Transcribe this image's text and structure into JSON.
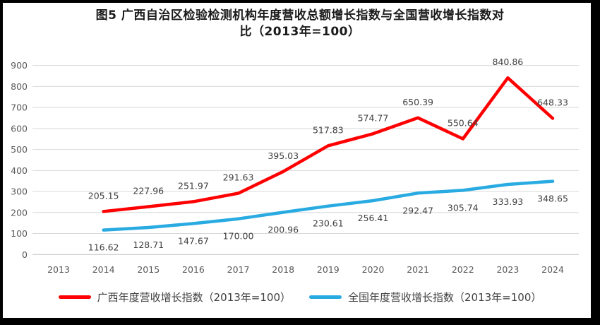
{
  "chart_data": {
    "type": "line",
    "title": "图5 广西自治区检验检测机构年度营收总额增长指数与全国营收增长指数对比（2013年=100）",
    "title_lines": {
      "line1": "图5  广西自治区检验检测机构年度营收总额增长指数与全国营收增长指数对",
      "line2": "比（2013年=100）"
    },
    "categories": [
      "2013",
      "2014",
      "2015",
      "2016",
      "2017",
      "2018",
      "2019",
      "2020",
      "2021",
      "2022",
      "2023",
      "2024"
    ],
    "ylim": [
      0,
      900
    ],
    "ytick_step": 100,
    "ytick_labels": [
      "0",
      "100",
      "200",
      "300",
      "400",
      "500",
      "600",
      "700",
      "800",
      "900"
    ],
    "grid": true,
    "legend_position": "bottom",
    "series": [
      {
        "name": "广西年度营收增长指数（2013年=100）",
        "color": "#FF0000",
        "start_category_index": 1,
        "values": [
          205.15,
          227.96,
          251.97,
          291.63,
          395.03,
          517.83,
          574.77,
          650.39,
          550.64,
          840.86,
          648.33
        ],
        "labels": [
          "205.15",
          "227.96",
          "251.97",
          "291.63",
          "395.03",
          "517.83",
          "574.77",
          "650.39",
          "550.64",
          "840.86",
          "648.33"
        ],
        "label_position": "above"
      },
      {
        "name": "全国年度营收增长指数（2013年=100）",
        "color": "#29ABE2",
        "start_category_index": 1,
        "values": [
          116.62,
          128.71,
          147.67,
          170.0,
          200.96,
          230.61,
          256.41,
          292.47,
          305.74,
          333.93,
          348.65
        ],
        "labels": [
          "116.62",
          "128.71",
          "147.67",
          "170.00",
          "200.96",
          "230.61",
          "256.41",
          "292.47",
          "305.74",
          "333.93",
          "348.65"
        ],
        "label_position": "below"
      }
    ],
    "colors": {
      "grid": "#D9D9D9",
      "axis_line": "#BFBFBF",
      "tick_label": "#595959",
      "data_label": "#404040",
      "title": "#1A1A1A",
      "frame": "#000000",
      "background": "#FFFFFF"
    }
  }
}
